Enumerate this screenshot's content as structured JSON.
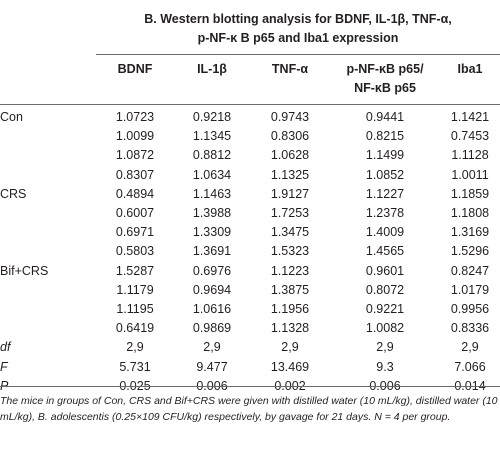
{
  "title": {
    "line1": "B. Western blotting analysis for BDNF, IL-1β, TNF-α,",
    "line2": "p-NF-κ B p65 and Iba1 expression"
  },
  "columns": [
    "BDNF",
    "IL-1β",
    "TNF-α",
    "p-NF-κB p65/",
    "NF-κB p65",
    "Iba1"
  ],
  "rows": [
    {
      "label": "Con",
      "values": [
        "1.0723",
        "0.9218",
        "0.9743",
        "0.9441",
        "1.1421"
      ]
    },
    {
      "label": "",
      "values": [
        "1.0099",
        "1.1345",
        "0.8306",
        "0.8215",
        "0.7453"
      ]
    },
    {
      "label": "",
      "values": [
        "1.0872",
        "0.8812",
        "1.0628",
        "1.1499",
        "1.1128"
      ]
    },
    {
      "label": "",
      "values": [
        "0.8307",
        "1.0634",
        "1.1325",
        "1.0852",
        "1.0011"
      ]
    },
    {
      "label": "CRS",
      "values": [
        "0.4894",
        "1.1463",
        "1.9127",
        "1.1227",
        "1.1859"
      ]
    },
    {
      "label": "",
      "values": [
        "0.6007",
        "1.3988",
        "1.7253",
        "1.2378",
        "1.1808"
      ]
    },
    {
      "label": "",
      "values": [
        "0.6971",
        "1.3309",
        "1.3475",
        "1.4009",
        "1.3169"
      ]
    },
    {
      "label": "",
      "values": [
        "0.5803",
        "1.3691",
        "1.5323",
        "1.4565",
        "1.5296"
      ]
    },
    {
      "label": "Bif+CRS",
      "values": [
        "1.5287",
        "0.6976",
        "1.1223",
        "0.9601",
        "0.8247"
      ]
    },
    {
      "label": "",
      "values": [
        "1.1179",
        "0.9694",
        "1.3875",
        "0.8072",
        "1.0179"
      ]
    },
    {
      "label": "",
      "values": [
        "1.1195",
        "1.0616",
        "1.1956",
        "0.9221",
        "0.9956"
      ]
    },
    {
      "label": "",
      "values": [
        "0.6419",
        "0.9869",
        "1.1328",
        "1.0082",
        "0.8336"
      ]
    },
    {
      "label": "df",
      "italic": true,
      "values": [
        "2,9",
        "2,9",
        "2,9",
        "2,9",
        "2,9"
      ]
    },
    {
      "label": "F",
      "italic": true,
      "values": [
        "5.731",
        "9.477",
        "13.469",
        "9.3",
        "7.066"
      ]
    },
    {
      "label": "P",
      "italic": true,
      "values": [
        "0.025",
        "0.006",
        "0.002",
        "0.006",
        "0.014"
      ]
    }
  ],
  "footnote": "The mice in groups of Con, CRS and Bif+CRS were given with distilled water (10 mL/kg), distilled water (10 mL/kg), B. adolescentis (0.25×109 CFU/kg) respectively, by gavage for 21 days. N = 4 per group."
}
